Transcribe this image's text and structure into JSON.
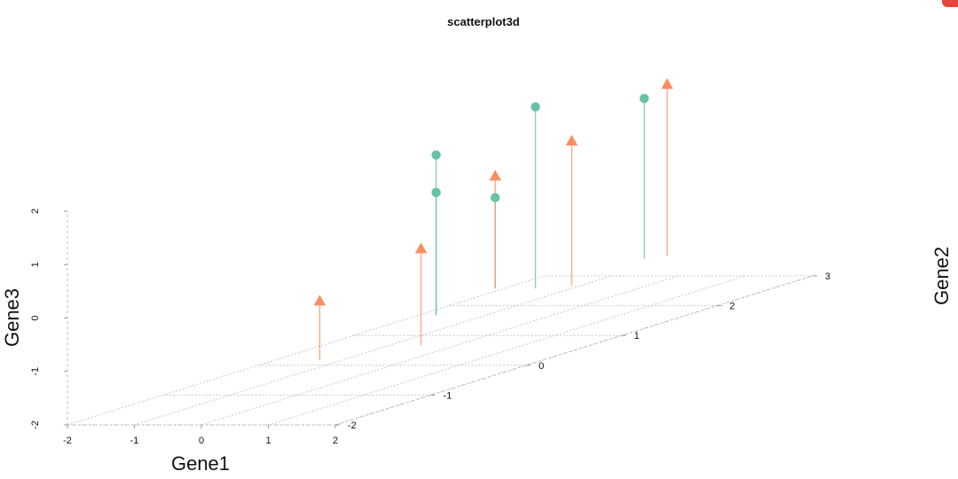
{
  "chart_data": {
    "type": "scatter",
    "title": "scatterplot3d",
    "xlabel": "Gene1",
    "ylabel": "Gene2",
    "zlabel": "Gene3",
    "xlim": [
      -2,
      2
    ],
    "ylim": [
      -2,
      3
    ],
    "zlim": [
      -2,
      2
    ],
    "x_ticks": [
      "-2",
      "-1",
      "0",
      "1",
      "2"
    ],
    "y_ticks": [
      "-2",
      "-1",
      "0",
      "1",
      "2",
      "3"
    ],
    "z_ticks": [
      "-2",
      "-1",
      "0",
      "1",
      "2"
    ],
    "grid": true,
    "vertical_drop_lines": true,
    "series": [
      {
        "marker": "circle",
        "color": "#66c2a5",
        "points": [
          {
            "x": -0.2,
            "y": 0.6,
            "z": 1.6
          },
          {
            "x": -0.2,
            "y": 0.6,
            "z": 0.9
          },
          {
            "x": 0.0,
            "y": 1.5,
            "z": 2.0
          },
          {
            "x": -0.6,
            "y": 1.5,
            "z": 0.3
          },
          {
            "x": 0.2,
            "y": 2.5,
            "z": 1.6
          }
        ]
      },
      {
        "marker": "triangle",
        "color": "#fc8d62",
        "points": [
          {
            "x": 0.2,
            "y": -0.9,
            "z": -0.3
          },
          {
            "x": 1.0,
            "y": -0.4,
            "z": 0.4
          },
          {
            "x": -0.6,
            "y": 1.5,
            "z": 0.7
          },
          {
            "x": 0.4,
            "y": 1.6,
            "z": 1.3
          },
          {
            "x": 0.4,
            "y": 2.6,
            "z": 1.8
          }
        ]
      }
    ]
  },
  "decor": {
    "corner_color": "#e8453c"
  }
}
